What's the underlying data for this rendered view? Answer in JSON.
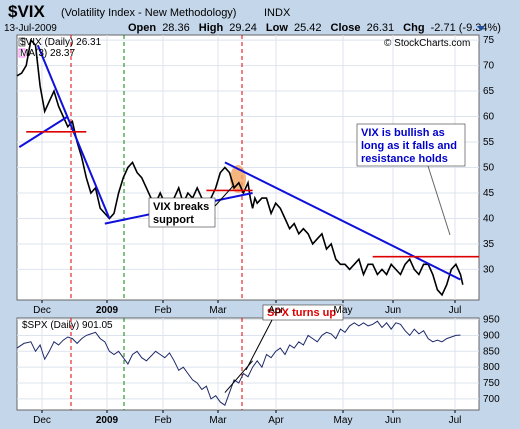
{
  "header": {
    "title": "$VIX",
    "subtitle": "(Volatility Index - New Methodology)",
    "exchange": "INDX",
    "date": "13-Jul-2009",
    "stats": {
      "open_label": "Open",
      "open": "28.36",
      "high_label": "High",
      "high": "29.24",
      "low_label": "Low",
      "low": "25.42",
      "close_label": "Close",
      "close": "26.31",
      "chg_label": "Chg",
      "chg": "-2.71 (-9.34%)"
    }
  },
  "watermark": "© StockCharts.com",
  "colors": {
    "panel_bg": "#ffffff",
    "frame_bg": "#c4d6ea",
    "grid": "#dde4ee",
    "price": "#000000",
    "ma": "#ff00ff",
    "trendline": "#1010dd",
    "support": "#dd0000",
    "spx_line": "#1e2a6a",
    "vline_red": "#dd0000",
    "vline_green": "#008800",
    "highlight": "#f2a35f"
  },
  "chart_data": [
    {
      "type": "line",
      "panel": "main",
      "legend": [
        {
          "name": "$VIX (Daily)",
          "value": "26.31"
        },
        {
          "name": "MA(3)",
          "value": "28.37"
        }
      ],
      "ylim": [
        24,
        76
      ],
      "y_ticks": [
        30,
        35,
        40,
        45,
        50,
        55,
        60,
        65,
        70,
        75
      ],
      "series": [
        {
          "name": "$VIX (Daily)",
          "points": [
            [
              0,
              68
            ],
            [
              2,
              68.5
            ],
            [
              4,
              70
            ],
            [
              6,
              75
            ],
            [
              8,
              74
            ],
            [
              10,
              66
            ],
            [
              12,
              61
            ],
            [
              14,
              63
            ],
            [
              16,
              65
            ],
            [
              18,
              62
            ],
            [
              20,
              60
            ],
            [
              22,
              58
            ],
            [
              24,
              59
            ],
            [
              26,
              55
            ],
            [
              28,
              52
            ],
            [
              30,
              48
            ],
            [
              32,
              45
            ],
            [
              34,
              46
            ],
            [
              36,
              42
            ],
            [
              38,
              41
            ],
            [
              40,
              40
            ],
            [
              42,
              41
            ],
            [
              44,
              45
            ],
            [
              46,
              48
            ],
            [
              48,
              50
            ],
            [
              50,
              51
            ],
            [
              52,
              49
            ],
            [
              54,
              48
            ],
            [
              56,
              46
            ],
            [
              58,
              44
            ],
            [
              60,
              43
            ],
            [
              62,
              45
            ],
            [
              64,
              43
            ],
            [
              66,
              42
            ],
            [
              68,
              44
            ],
            [
              70,
              46
            ],
            [
              72,
              43
            ],
            [
              74,
              45
            ],
            [
              76,
              44
            ],
            [
              78,
              46
            ],
            [
              80,
              44
            ],
            [
              82,
              42
            ],
            [
              84,
              44
            ],
            [
              86,
              46
            ],
            [
              88,
              49
            ],
            [
              90,
              50
            ],
            [
              92,
              49
            ],
            [
              94,
              46
            ],
            [
              96,
              47
            ],
            [
              98,
              45
            ],
            [
              100,
              47
            ],
            [
              101,
              44
            ],
            [
              102,
              42
            ],
            [
              103,
              44
            ],
            [
              104,
              43
            ],
            [
              106,
              44
            ],
            [
              108,
              44
            ],
            [
              110,
              41
            ],
            [
              112,
              43
            ],
            [
              114,
              42
            ],
            [
              116,
              40
            ],
            [
              118,
              38
            ],
            [
              120,
              39
            ],
            [
              122,
              37
            ],
            [
              124,
              38
            ],
            [
              126,
              37
            ],
            [
              128,
              35
            ],
            [
              130,
              36
            ],
            [
              132,
              37
            ],
            [
              134,
              34
            ],
            [
              136,
              35
            ],
            [
              138,
              32
            ],
            [
              140,
              31
            ],
            [
              142,
              31
            ],
            [
              144,
              30
            ],
            [
              146,
              31
            ],
            [
              148,
              32
            ],
            [
              150,
              29
            ],
            [
              152,
              31
            ],
            [
              154,
              31
            ],
            [
              156,
              29
            ],
            [
              158,
              30
            ],
            [
              160,
              29
            ],
            [
              162,
              31
            ],
            [
              164,
              30
            ],
            [
              166,
              29
            ],
            [
              168,
              31
            ],
            [
              170,
              32
            ],
            [
              172,
              30
            ],
            [
              174,
              29
            ],
            [
              176,
              31
            ],
            [
              178,
              31
            ],
            [
              180,
              29
            ],
            [
              182,
              26
            ],
            [
              184,
              25
            ],
            [
              186,
              27
            ],
            [
              188,
              30
            ],
            [
              190,
              31
            ],
            [
              192,
              29
            ],
            [
              193,
              27
            ]
          ]
        },
        {
          "name": "Trendline 1",
          "points": [
            [
              9,
              74
            ],
            [
              40,
              40
            ]
          ]
        },
        {
          "name": "Trendline 2",
          "points": [
            [
              1,
              54
            ],
            [
              22,
              60
            ]
          ]
        },
        {
          "name": "Trendline 3",
          "points": [
            [
              38,
              39
            ],
            [
              102,
              45
            ]
          ]
        },
        {
          "name": "Trendline 4",
          "points": [
            [
              90,
              51
            ],
            [
              192,
              28
            ]
          ]
        },
        {
          "name": "Resistance 1",
          "points": [
            [
              4,
              57
            ],
            [
              30,
              57
            ]
          ]
        },
        {
          "name": "Resistance 2",
          "points": [
            [
              82,
              45.5
            ],
            [
              102,
              45.5
            ]
          ]
        },
        {
          "name": "Resistance 3",
          "points": [
            [
              154,
              32.5
            ],
            [
              200,
              32.5
            ]
          ]
        }
      ],
      "annotations": [
        {
          "text": "VIX breaks support",
          "lines": [
            "VIX breaks",
            "support"
          ],
          "box": "white",
          "color": "#000000"
        },
        {
          "text": "VIX is bullish as long as it falls and resistance holds",
          "lines": [
            "VIX is bullish as",
            "long as it falls and",
            "resistance holds"
          ],
          "box": "white",
          "color": "#0000cc"
        }
      ],
      "x_ticks": [
        "Dec",
        "2009",
        "Feb",
        "Mar",
        "Apr",
        "May",
        "Jun",
        "Jul"
      ]
    },
    {
      "type": "line",
      "panel": "lower",
      "legend": [
        {
          "name": "$SPX (Daily)",
          "value": "901.05"
        }
      ],
      "ylim": [
        665,
        955
      ],
      "y_ticks": [
        700,
        750,
        800,
        850,
        900,
        950
      ],
      "series": [
        {
          "name": "$SPX (Daily)",
          "points": [
            [
              0,
              860
            ],
            [
              3,
              875
            ],
            [
              6,
              880
            ],
            [
              8,
              850
            ],
            [
              10,
              870
            ],
            [
              12,
              825
            ],
            [
              14,
              850
            ],
            [
              16,
              880
            ],
            [
              18,
              870
            ],
            [
              20,
              885
            ],
            [
              22,
              895
            ],
            [
              24,
              890
            ],
            [
              26,
              875
            ],
            [
              28,
              890
            ],
            [
              30,
              900
            ],
            [
              32,
              905
            ],
            [
              34,
              910
            ],
            [
              36,
              890
            ],
            [
              38,
              880
            ],
            [
              40,
              850
            ],
            [
              42,
              840
            ],
            [
              44,
              850
            ],
            [
              46,
              830
            ],
            [
              48,
              810
            ],
            [
              50,
              840
            ],
            [
              52,
              850
            ],
            [
              54,
              830
            ],
            [
              56,
              820
            ],
            [
              58,
              835
            ],
            [
              60,
              850
            ],
            [
              62,
              840
            ],
            [
              64,
              830
            ],
            [
              66,
              845
            ],
            [
              68,
              820
            ],
            [
              70,
              790
            ],
            [
              72,
              800
            ],
            [
              74,
              780
            ],
            [
              76,
              760
            ],
            [
              78,
              750
            ],
            [
              80,
              730
            ],
            [
              82,
              740
            ],
            [
              84,
              700
            ],
            [
              86,
              710
            ],
            [
              88,
              690
            ],
            [
              90,
              680
            ],
            [
              92,
              720
            ],
            [
              94,
              760
            ],
            [
              96,
              750
            ],
            [
              98,
              780
            ],
            [
              100,
              770
            ],
            [
              102,
              800
            ],
            [
              104,
              820
            ],
            [
              106,
              800
            ],
            [
              108,
              840
            ],
            [
              110,
              830
            ],
            [
              112,
              850
            ],
            [
              114,
              860
            ],
            [
              116,
              840
            ],
            [
              118,
              870
            ],
            [
              120,
              860
            ],
            [
              122,
              880
            ],
            [
              124,
              870
            ],
            [
              126,
              900
            ],
            [
              128,
              890
            ],
            [
              130,
              880
            ],
            [
              132,
              900
            ],
            [
              134,
              910
            ],
            [
              136,
              905
            ],
            [
              138,
              890
            ],
            [
              140,
              920
            ],
            [
              142,
              910
            ],
            [
              144,
              930
            ],
            [
              146,
              940
            ],
            [
              148,
              930
            ],
            [
              150,
              940
            ],
            [
              152,
              930
            ],
            [
              154,
              935
            ],
            [
              156,
              945
            ],
            [
              158,
              925
            ],
            [
              160,
              940
            ],
            [
              162,
              920
            ],
            [
              164,
              940
            ],
            [
              166,
              935
            ],
            [
              168,
              915
            ],
            [
              170,
              900
            ],
            [
              172,
              920
            ],
            [
              174,
              905
            ],
            [
              176,
              915
            ],
            [
              178,
              890
            ],
            [
              180,
              880
            ],
            [
              182,
              885
            ],
            [
              184,
              880
            ],
            [
              186,
              890
            ],
            [
              188,
              895
            ],
            [
              190,
              900
            ],
            [
              192,
              901
            ]
          ]
        },
        {
          "name": "Trendline SPX",
          "points": [
            [
              90,
              720
            ],
            [
              102,
              820
            ]
          ]
        }
      ],
      "annotations": [
        {
          "text": "SPX turns up",
          "box": "white",
          "color": "#dd0000"
        }
      ],
      "x_ticks": [
        "Dec",
        "2009",
        "Feb",
        "Mar",
        "Apr",
        "May",
        "Jun",
        "Jul"
      ]
    }
  ]
}
